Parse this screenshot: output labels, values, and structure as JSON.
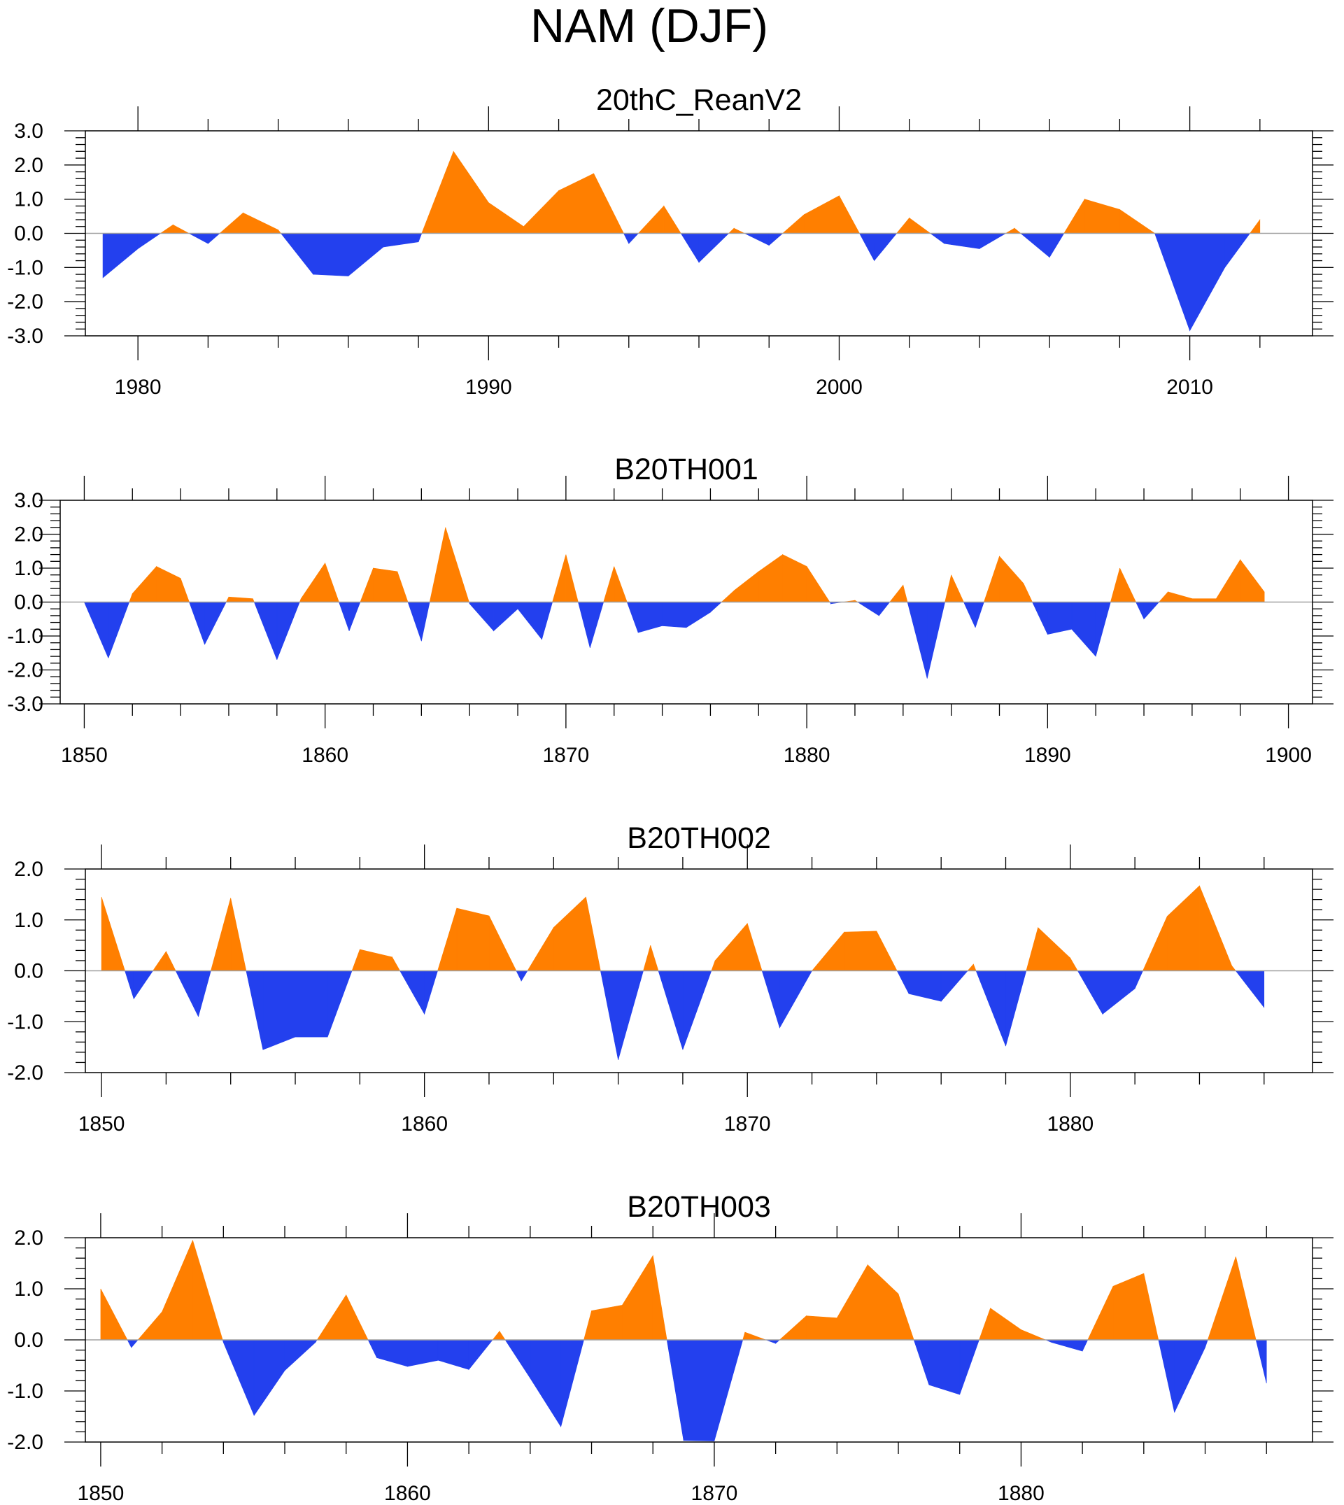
{
  "figure": {
    "title": "NAM (DJF)"
  },
  "colors": {
    "positive": "#ff7f00",
    "negative": "#2340ee",
    "frame": "#000000",
    "zero_line": "#a0a0a0"
  },
  "chart_data": [
    {
      "type": "area",
      "title": "20thC_ReanV2",
      "xlabel": "",
      "ylabel": "",
      "xlim": [
        1978.5,
        2013.5
      ],
      "ylim": [
        -3.0,
        3.0
      ],
      "x_major_ticks": [
        1980,
        1990,
        2000,
        2010
      ],
      "x_tick_labels": [
        "1980",
        "1990",
        "2000",
        "2010"
      ],
      "x_minor_step": 2,
      "y_ticks": [
        -3.0,
        -2.0,
        -1.0,
        0.0,
        1.0,
        2.0,
        3.0
      ],
      "y_tick_labels": [
        "-3.0",
        "-2.0",
        "-1.0",
        "0.0",
        "1.0",
        "2.0",
        "3.0"
      ],
      "y_minor_step": 0.2,
      "fill": "positive orange above zero, negative blue below zero",
      "x_start": 1979,
      "values": [
        -1.3,
        -0.45,
        0.25,
        -0.3,
        0.6,
        0.1,
        -1.2,
        -1.25,
        -0.4,
        -0.25,
        2.4,
        0.9,
        0.2,
        1.25,
        1.75,
        -0.3,
        0.8,
        -0.85,
        0.15,
        -0.35,
        0.55,
        1.1,
        -0.8,
        0.45,
        -0.3,
        -0.45,
        0.15,
        -0.7,
        1.0,
        0.7,
        0.0,
        -2.85,
        -1.0,
        0.4
      ]
    },
    {
      "type": "area",
      "title": "B20TH001",
      "xlabel": "",
      "ylabel": "",
      "xlim": [
        1849.0,
        1901.0
      ],
      "ylim": [
        -3.0,
        3.0
      ],
      "x_major_ticks": [
        1850,
        1860,
        1870,
        1880,
        1890,
        1900
      ],
      "x_tick_labels": [
        "1850",
        "1860",
        "1870",
        "1880",
        "1890",
        "1900"
      ],
      "x_minor_step": 2,
      "y_ticks": [
        -3.0,
        -2.0,
        -1.0,
        0.0,
        1.0,
        2.0,
        3.0
      ],
      "y_tick_labels": [
        "-3.0",
        "-2.0",
        "-1.0",
        "0.0",
        "1.0",
        "2.0",
        "3.0"
      ],
      "y_minor_step": 0.2,
      "fill": "positive orange above zero, negative blue below zero",
      "x_start": 1850,
      "values": [
        0.0,
        -1.65,
        0.25,
        1.05,
        0.7,
        -1.25,
        0.15,
        0.1,
        -1.7,
        0.1,
        1.15,
        -0.85,
        1.0,
        0.9,
        -1.15,
        2.2,
        -0.05,
        -0.85,
        -0.2,
        -1.1,
        1.4,
        -1.35,
        1.05,
        -0.9,
        -0.7,
        -0.75,
        -0.3,
        0.35,
        0.9,
        1.4,
        1.05,
        -0.05,
        0.05,
        -0.4,
        0.5,
        -2.25,
        0.8,
        -0.75,
        1.35,
        0.55,
        -0.95,
        -0.8,
        -1.6,
        1.0,
        -0.5,
        0.3,
        0.1,
        0.1,
        1.25,
        0.3
      ]
    },
    {
      "type": "area",
      "title": "B20TH002",
      "xlabel": "",
      "ylabel": "",
      "xlim": [
        1849.5,
        1887.5
      ],
      "ylim": [
        -2.0,
        2.0
      ],
      "x_major_ticks": [
        1850,
        1860,
        1870,
        1880
      ],
      "x_tick_labels": [
        "1850",
        "1860",
        "1870",
        "1880"
      ],
      "x_minor_step": 2,
      "y_ticks": [
        -2.0,
        -1.0,
        0.0,
        1.0,
        2.0
      ],
      "y_tick_labels": [
        "-2.0",
        "-1.0",
        "0.0",
        "1.0",
        "2.0"
      ],
      "y_minor_step": 0.2,
      "fill": "positive orange above zero, negative blue below zero",
      "x_start": 1850,
      "values": [
        1.45,
        -0.55,
        0.38,
        -0.9,
        1.43,
        -1.55,
        -1.3,
        -1.3,
        0.42,
        0.27,
        -0.85,
        1.23,
        1.08,
        -0.2,
        0.85,
        1.45,
        -1.75,
        0.5,
        -1.55,
        0.2,
        0.93,
        -1.12,
        0.0,
        0.76,
        0.78,
        -0.45,
        -0.6,
        0.13,
        -1.48,
        0.85,
        0.25,
        -0.85,
        -0.35,
        1.07,
        1.67,
        0.1,
        -0.72
      ]
    },
    {
      "type": "area",
      "title": "B20TH003",
      "xlabel": "",
      "ylabel": "",
      "xlim": [
        1849.5,
        1889.5
      ],
      "ylim": [
        -2.0,
        2.0
      ],
      "x_major_ticks": [
        1850,
        1860,
        1870,
        1880
      ],
      "x_tick_labels": [
        "1850",
        "1860",
        "1870",
        "1880"
      ],
      "x_minor_step": 2,
      "y_ticks": [
        -2.0,
        -1.0,
        0.0,
        1.0,
        2.0
      ],
      "y_tick_labels": [
        "-2.0",
        "-1.0",
        "0.0",
        "1.0",
        "2.0"
      ],
      "y_minor_step": 0.2,
      "fill": "positive orange above zero, negative blue below zero",
      "x_start": 1850,
      "values": [
        1.0,
        -0.15,
        0.55,
        1.95,
        -0.05,
        -1.48,
        -0.6,
        -0.05,
        0.88,
        -0.35,
        -0.52,
        -0.4,
        -0.58,
        0.17,
        -0.75,
        -1.7,
        0.57,
        0.68,
        1.65,
        -1.97,
        -1.98,
        0.15,
        -0.07,
        0.47,
        0.43,
        1.47,
        0.9,
        -0.88,
        -1.07,
        0.62,
        0.2,
        -0.05,
        -0.22,
        1.05,
        1.3,
        -1.42,
        -0.15,
        1.63,
        -0.85
      ]
    }
  ]
}
